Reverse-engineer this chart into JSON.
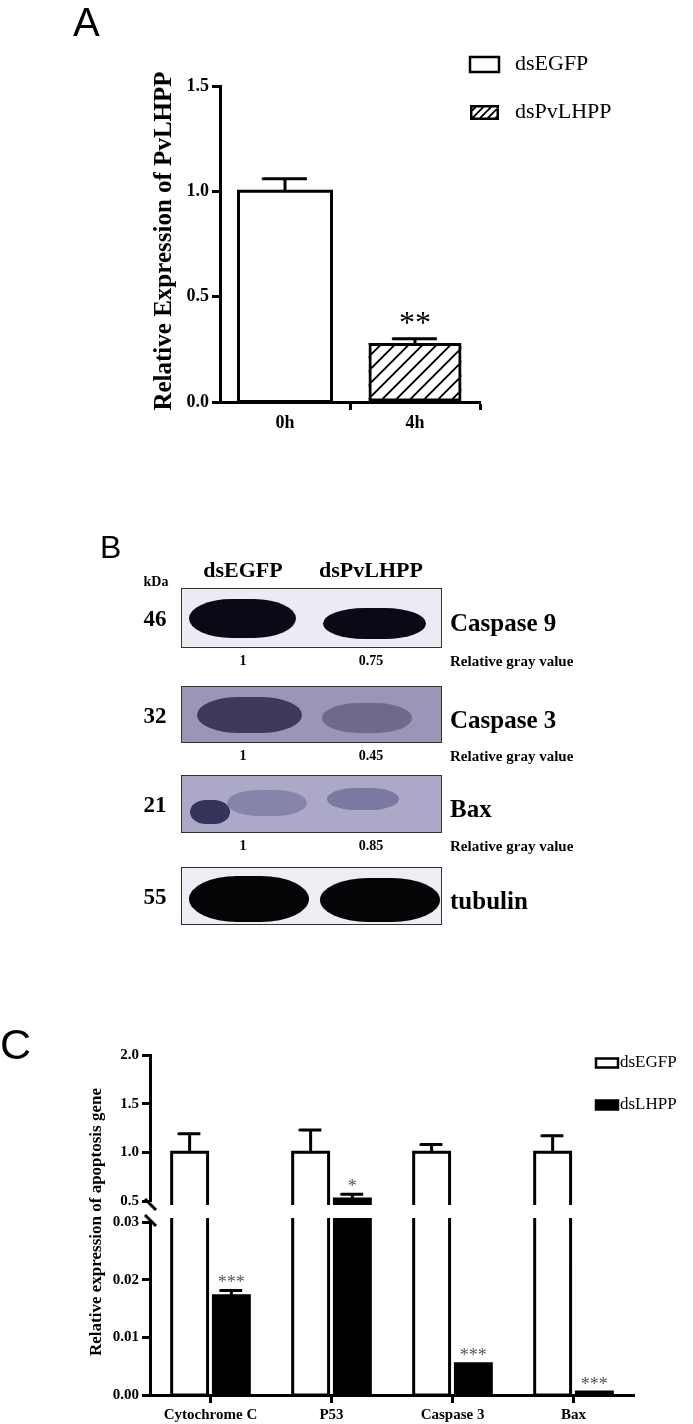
{
  "chart_data": [
    {
      "type": "bar",
      "title": "A",
      "ylabel": "Relative Expression of PvLHPP",
      "categories": [
        "0h",
        "4h"
      ],
      "series": [
        {
          "name": "dsEGFP",
          "color": "#ffffff",
          "values": [
            1.0,
            null
          ],
          "errors": [
            [
              1.0,
              1.06
            ],
            null
          ]
        },
        {
          "name": "dsPvLHPP",
          "color": "#000000",
          "values": [
            null,
            0.28
          ],
          "errors": [
            null,
            [
              0.28,
              0.3
            ]
          ]
        }
      ],
      "ylim": [
        0,
        1.5
      ],
      "yticks": [
        {
          "value": 0,
          "label": "0.0"
        },
        {
          "value": 0.5,
          "label": "0.5"
        },
        {
          "value": 1,
          "label": "1.0"
        },
        {
          "value": 1.5,
          "label": "1.5"
        }
      ],
      "legend": "top right",
      "annotations": [
        {
          "text": "**",
          "x": "4h",
          "y": 0.28
        }
      ]
    },
    {
      "type": "other",
      "title": "B",
      "categories": [
        "dsEGFP",
        "dsPvLHPP"
      ],
      "ylabel": "kDa",
      "y_categories": [
        "46",
        "32",
        "21",
        "55"
      ],
      "series": [
        {
          "name": "Caspase 9",
          "values": [
            1,
            0.75
          ]
        },
        {
          "name": "Caspase 3",
          "values": [
            1,
            0.45
          ]
        },
        {
          "name": "Bax",
          "values": [
            1,
            0.85
          ]
        },
        {
          "name": "tubulin",
          "values": [
            null,
            null
          ]
        }
      ],
      "data_labels": true,
      "annotations": [
        "Relative gray value",
        "Relative gray value",
        "Relative gray value"
      ]
    },
    {
      "type": "bar",
      "title": "C",
      "categories": [
        "Cytochrome C",
        "P53",
        "Caspase 3",
        "Bax"
      ],
      "series": [
        {
          "name": "dsEGFP",
          "color": "#ffffff",
          "values": [
            1,
            1,
            1,
            1
          ],
          "errors": [
            [
              1,
              1.19
            ],
            [
              1,
              1.23
            ],
            [
              1,
              1.08
            ],
            [
              1,
              1.17
            ]
          ]
        },
        {
          "name": "dsLHPP",
          "color": "#000000",
          "values": [
            null,
            0.52,
            null,
            null
          ],
          "errors": [
            null,
            [
              0.52,
              0.57
            ],
            null,
            null
          ]
        }
      ],
      "ylim": [
        0.5,
        2.0
      ],
      "yticks": [
        {
          "value": 0.5,
          "label": "0.5"
        },
        {
          "value": 1,
          "label": "1.0"
        },
        {
          "value": 1.5,
          "label": "1.5"
        },
        {
          "value": 2,
          "label": "2.0"
        }
      ],
      "tick_labels": "y",
      "legend": "top right",
      "annotations": [
        {
          "text": "*",
          "x": "P53",
          "y": 0.52
        }
      ]
    },
    {
      "type": "bar",
      "ylabel": "Relative expression of apoptosis gene",
      "categories": [
        "Cytochrome C",
        "P53",
        "Caspase 3",
        "Bax"
      ],
      "series": [
        {
          "color": "#ffffff",
          "values": [
            null,
            null,
            null,
            null
          ]
        },
        {
          "color": "#000000",
          "values": [
            0.0172,
            null,
            0.0054,
            0.0005
          ],
          "errors": [
            [
              0.0172,
              0.0181
            ],
            null,
            null,
            null
          ]
        }
      ],
      "ylim": [
        0,
        0.03
      ],
      "yticks": [
        {
          "value": 0,
          "label": "0.00"
        },
        {
          "value": 0.01,
          "label": "0.01"
        },
        {
          "value": 0.02,
          "label": "0.02"
        },
        {
          "value": 0.03,
          "label": "0.03"
        }
      ],
      "annotations": [
        {
          "text": "***",
          "x": "Cytochrome C",
          "y": 0.0172
        },
        {
          "text": "***",
          "x": "Caspase 3",
          "y": 0.0054
        },
        {
          "text": "***",
          "x": "Bax",
          "y": 0.0005
        }
      ]
    }
  ]
}
